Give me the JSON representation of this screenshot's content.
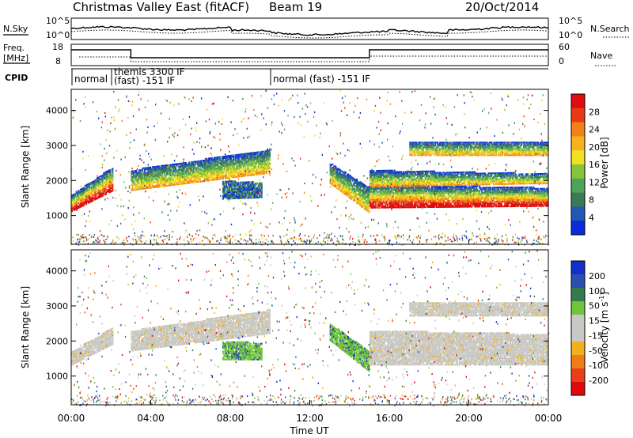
{
  "header": {
    "title": "Christmas Valley East (fitACF)",
    "beam": "Beam 19",
    "date": "20/Oct/2014"
  },
  "top_panel": {
    "nsky_label": "N.Sky",
    "nsearch_label": "N.Search",
    "left_ticks": [
      "10^5",
      "10^0"
    ],
    "right_ticks": [
      "10^5",
      "10^0"
    ],
    "freq_label": "Freq.",
    "freq_unit": "[MHz]",
    "nave_label": "Nave",
    "freq_ticks": [
      "18",
      "8"
    ],
    "nave_ticks": [
      "60",
      "0"
    ],
    "cpid_label": "CPID",
    "cpid_modes": [
      {
        "text": "normal",
        "start_h": 0.1,
        "end_h": 2.1
      },
      {
        "text": "themis 3300 IF",
        "start_h": 2.1,
        "end_h": 10.0
      },
      {
        "text": "(fast) -151 IF",
        "start_h": 2.1,
        "end_h": 10.0
      },
      {
        "text": "normal (fast) -151 IF",
        "start_h": 10.0,
        "end_h": 24.0
      }
    ]
  },
  "colors": {
    "power": [
      "#0a2bd6",
      "#2158b6",
      "#3b7a56",
      "#4fa25a",
      "#86c43c",
      "#f0e020",
      "#f6b21d",
      "#f28018",
      "#ea3a14",
      "#e00d10"
    ],
    "velocity": [
      "#1030c8",
      "#2a4fb0",
      "#36794d",
      "#6ec43a",
      "#c8c8c4",
      "#c8c8c4",
      "#f0b020",
      "#f07c18",
      "#e8401a",
      "#dd0a0e"
    ]
  },
  "chart_data": [
    {
      "type": "heatmap",
      "panel": "power",
      "xlabel": "",
      "ylabel": "Slant Range [km]",
      "ylim": [
        180,
        4600
      ],
      "xlim_hours": [
        0,
        24
      ],
      "yticks": [
        1000,
        2000,
        3000,
        4000
      ],
      "colorbar_label": "Power [dB]",
      "colorbar_ticks": [
        "4",
        "8",
        "12",
        "16",
        "20",
        "24",
        "28"
      ],
      "colorbar_range": [
        0,
        30
      ],
      "bands": [
        {
          "t": [
            0.0,
            2.1
          ],
          "r0": [
            1100,
            1700
          ],
          "r1": [
            1600,
            2400
          ],
          "level": "high"
        },
        {
          "t": [
            3.0,
            10.0
          ],
          "r0": [
            1700,
            2200
          ],
          "r1": [
            2300,
            2900
          ],
          "level": "mid"
        },
        {
          "t": [
            7.6,
            9.6
          ],
          "r0": [
            1450,
            1500
          ],
          "r1": [
            2000,
            1950
          ],
          "level": "low"
        },
        {
          "t": [
            13.0,
            15.0
          ],
          "r0": [
            1900,
            1050
          ],
          "r1": [
            2500,
            1800
          ],
          "level": "mid"
        },
        {
          "t": [
            15.0,
            24.0
          ],
          "r0": [
            1200,
            1250
          ],
          "r1": [
            1900,
            1800
          ],
          "level": "high"
        },
        {
          "t": [
            15.0,
            24.0
          ],
          "r0": [
            1800,
            1900
          ],
          "r1": [
            2300,
            2200
          ],
          "level": "mid"
        },
        {
          "t": [
            17.0,
            24.0
          ],
          "r0": [
            2700,
            2700
          ],
          "r1": [
            3100,
            3100
          ],
          "level": "mid"
        }
      ]
    },
    {
      "type": "heatmap",
      "panel": "velocity",
      "xlabel": "Time UT",
      "ylabel": "Slant Range [km]",
      "ylim": [
        180,
        4600
      ],
      "xlim_hours": [
        0,
        24
      ],
      "yticks": [
        1000,
        2000,
        3000,
        4000
      ],
      "colorbar_label": "Velocity [m s",
      "colorbar_label_sup": "-1",
      "colorbar_label_end": "]",
      "colorbar_ticks": [
        "200",
        "100",
        "50",
        "15",
        "-15",
        "-50",
        "-100",
        "-200"
      ],
      "colorbar_range": [
        -250,
        250
      ],
      "bands": [
        {
          "t": [
            0.0,
            2.1
          ],
          "r0": [
            1300,
            1900
          ],
          "r1": [
            1700,
            2400
          ],
          "level": "gray"
        },
        {
          "t": [
            3.0,
            10.0
          ],
          "r0": [
            1700,
            2200
          ],
          "r1": [
            2300,
            2900
          ],
          "level": "gray"
        },
        {
          "t": [
            7.6,
            9.6
          ],
          "r0": [
            1450,
            1450
          ],
          "r1": [
            2000,
            1950
          ],
          "level": "green"
        },
        {
          "t": [
            13.0,
            15.0
          ],
          "r0": [
            2000,
            1100
          ],
          "r1": [
            2500,
            1700
          ],
          "level": "green"
        },
        {
          "t": [
            15.0,
            24.0
          ],
          "r0": [
            1300,
            1300
          ],
          "r1": [
            2300,
            2200
          ],
          "level": "gray"
        },
        {
          "t": [
            17.0,
            24.0
          ],
          "r0": [
            2700,
            2700
          ],
          "r1": [
            3100,
            3100
          ],
          "level": "gray"
        }
      ]
    }
  ],
  "x_axis": {
    "ticks": [
      "00:00",
      "04:00",
      "08:00",
      "12:00",
      "16:00",
      "20:00",
      "00:00"
    ],
    "label": "Time UT"
  }
}
